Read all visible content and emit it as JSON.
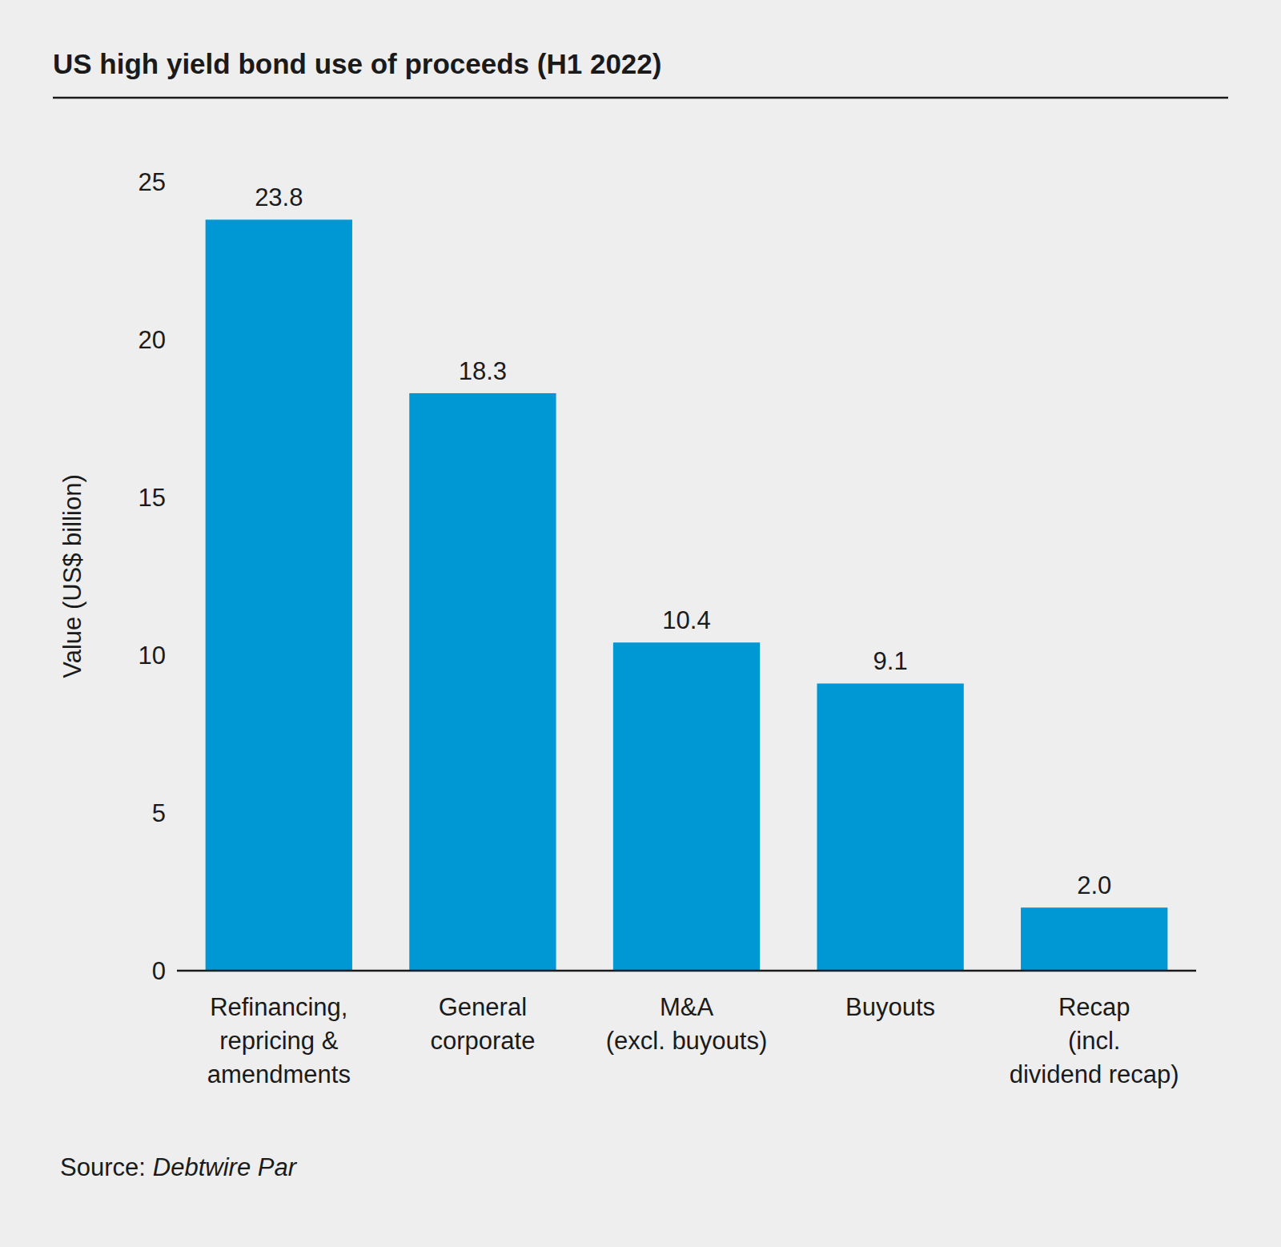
{
  "chart_data": {
    "type": "bar",
    "title": "US high yield bond use of proceeds (H1 2022)",
    "y_label": "Value (US$ billion)",
    "categories": [
      "Refinancing,\nrepricing &\namendments",
      "General\ncorporate",
      "M&A\n(excl. buyouts)",
      "Buyouts",
      "Recap\n(incl.\ndividend recap)"
    ],
    "values": [
      23.8,
      18.3,
      10.4,
      9.1,
      2.0
    ],
    "value_labels": [
      "23.8",
      "18.3",
      "10.4",
      "9.1",
      "2.0"
    ],
    "color": "#0098d4",
    "ylim": [
      0,
      25
    ],
    "yticks": [
      0,
      5,
      10,
      15,
      20,
      25
    ],
    "grid": false,
    "data_labels": true,
    "source_label": "Source:",
    "source": "Debtwire Par"
  }
}
